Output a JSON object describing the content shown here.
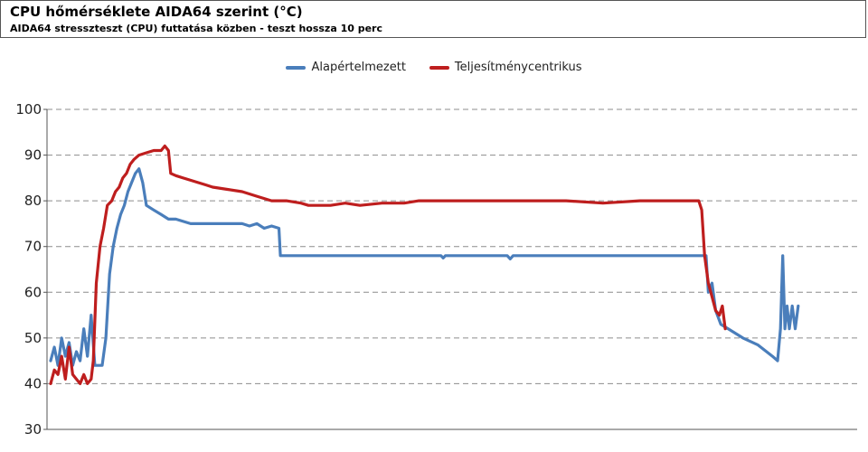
{
  "header": {
    "title": "CPU hőmérséklete AIDA64 szerint (°C)",
    "subtitle": "AIDA64 stresszteszt (CPU) futtatása közben - teszt hossza 10 perc"
  },
  "colors": {
    "series1": "#4a7ebb",
    "series2": "#be1e1e",
    "grid": "#8c8c8c"
  },
  "chart_data": {
    "type": "line",
    "title": "CPU hőmérséklete AIDA64 szerint (°C)",
    "subtitle": "AIDA64 stresszteszt (CPU) futtatása közben - teszt hossza 10 perc",
    "xlabel": "",
    "ylabel": "",
    "ylim": [
      30,
      100
    ],
    "yticks": [
      30,
      40,
      50,
      60,
      70,
      80,
      90,
      100
    ],
    "xlim": [
      0,
      100
    ],
    "grid": true,
    "legend_position": "top-center",
    "series": [
      {
        "name": "Alapértelmezett",
        "color": "#4a7ebb",
        "points": [
          [
            0,
            45
          ],
          [
            0.5,
            48
          ],
          [
            1,
            44
          ],
          [
            1.5,
            50
          ],
          [
            2,
            46
          ],
          [
            2.5,
            49
          ],
          [
            3,
            44
          ],
          [
            3.5,
            47
          ],
          [
            4,
            45
          ],
          [
            4.5,
            52
          ],
          [
            5,
            46
          ],
          [
            5.5,
            55
          ],
          [
            6,
            44
          ],
          [
            6.5,
            44
          ],
          [
            7,
            44
          ],
          [
            7.5,
            50
          ],
          [
            8,
            64
          ],
          [
            8.5,
            70
          ],
          [
            9,
            74
          ],
          [
            9.5,
            77
          ],
          [
            10,
            79
          ],
          [
            10.5,
            82
          ],
          [
            11,
            84
          ],
          [
            11.5,
            86
          ],
          [
            12,
            87
          ],
          [
            12.5,
            84
          ],
          [
            13,
            79
          ],
          [
            14,
            78
          ],
          [
            15,
            77
          ],
          [
            16,
            76
          ],
          [
            17,
            76
          ],
          [
            18,
            75.5
          ],
          [
            19,
            75
          ],
          [
            20,
            75
          ],
          [
            22,
            75
          ],
          [
            24,
            75
          ],
          [
            26,
            75
          ],
          [
            27,
            74.5
          ],
          [
            28,
            75
          ],
          [
            29,
            74
          ],
          [
            30,
            74.5
          ],
          [
            31,
            74
          ],
          [
            31.2,
            68
          ],
          [
            32,
            68
          ],
          [
            40,
            68
          ],
          [
            50,
            68
          ],
          [
            53,
            68
          ],
          [
            53.3,
            67.5
          ],
          [
            53.6,
            68
          ],
          [
            62,
            68
          ],
          [
            62.4,
            67.3
          ],
          [
            62.8,
            68
          ],
          [
            70,
            68
          ],
          [
            80,
            68
          ],
          [
            85,
            68
          ],
          [
            89,
            68
          ],
          [
            89.3,
            60
          ],
          [
            89.8,
            62
          ],
          [
            90.3,
            56
          ],
          [
            91,
            53
          ],
          [
            92,
            52
          ],
          [
            94,
            50
          ],
          [
            96,
            48.5
          ],
          [
            98,
            46
          ],
          [
            98.7,
            45
          ],
          [
            99.1,
            52
          ],
          [
            99.4,
            68
          ],
          [
            99.7,
            52
          ],
          [
            100,
            57
          ],
          [
            100.3,
            52
          ],
          [
            100.7,
            57
          ],
          [
            101.1,
            52
          ],
          [
            101.5,
            57
          ]
        ]
      },
      {
        "name": "Teljesítménycentrikus",
        "color": "#be1e1e",
        "points": [
          [
            0,
            40
          ],
          [
            0.5,
            43
          ],
          [
            1,
            42
          ],
          [
            1.5,
            46
          ],
          [
            2,
            41
          ],
          [
            2.5,
            48
          ],
          [
            3,
            42
          ],
          [
            3.5,
            41
          ],
          [
            4,
            40
          ],
          [
            4.5,
            42
          ],
          [
            5,
            40
          ],
          [
            5.5,
            41
          ],
          [
            5.8,
            45
          ],
          [
            6.2,
            62
          ],
          [
            6.7,
            70
          ],
          [
            7.2,
            74
          ],
          [
            7.7,
            79
          ],
          [
            8.3,
            80
          ],
          [
            8.8,
            82
          ],
          [
            9.3,
            83
          ],
          [
            9.8,
            85
          ],
          [
            10.3,
            86
          ],
          [
            10.8,
            88
          ],
          [
            11.3,
            89
          ],
          [
            12,
            90
          ],
          [
            13,
            90.5
          ],
          [
            14,
            91
          ],
          [
            15,
            91
          ],
          [
            15.5,
            92
          ],
          [
            16,
            91
          ],
          [
            16.3,
            86
          ],
          [
            17,
            85.5
          ],
          [
            18,
            85
          ],
          [
            19,
            84.5
          ],
          [
            20,
            84
          ],
          [
            21,
            83.5
          ],
          [
            22,
            83
          ],
          [
            24,
            82.5
          ],
          [
            26,
            82
          ],
          [
            28,
            81
          ],
          [
            30,
            80
          ],
          [
            32,
            80
          ],
          [
            34,
            79.5
          ],
          [
            35,
            79
          ],
          [
            36,
            79
          ],
          [
            38,
            79
          ],
          [
            40,
            79.5
          ],
          [
            42,
            79
          ],
          [
            45,
            79.5
          ],
          [
            48,
            79.5
          ],
          [
            50,
            80
          ],
          [
            55,
            80
          ],
          [
            60,
            80
          ],
          [
            65,
            80
          ],
          [
            70,
            80
          ],
          [
            75,
            79.5
          ],
          [
            80,
            80
          ],
          [
            85,
            80
          ],
          [
            88,
            80
          ],
          [
            88.4,
            78
          ],
          [
            88.8,
            68
          ],
          [
            89.3,
            62
          ],
          [
            89.8,
            59
          ],
          [
            90.3,
            56
          ],
          [
            90.8,
            55
          ],
          [
            91.2,
            57
          ],
          [
            91.6,
            52
          ]
        ]
      }
    ]
  }
}
